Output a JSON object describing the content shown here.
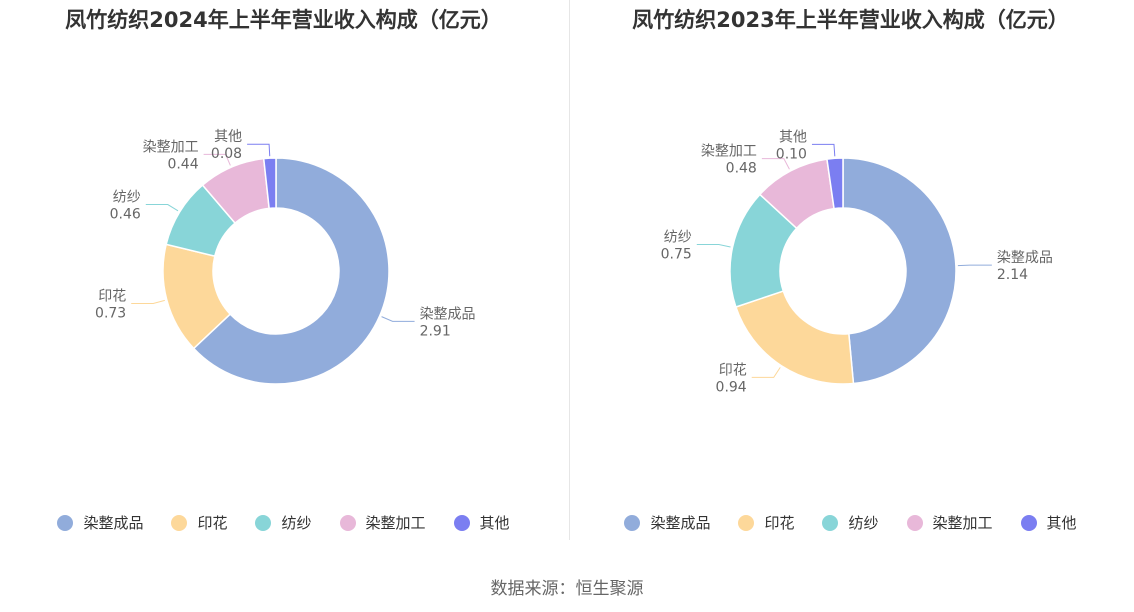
{
  "chart_data": [
    {
      "type": "pie",
      "title": "凤竹纺织2024年上半年营业收入构成（亿元）",
      "categories": [
        "染整成品",
        "印花",
        "纺纱",
        "染整加工",
        "其他"
      ],
      "values": [
        2.91,
        0.73,
        0.46,
        0.44,
        0.08
      ],
      "value_labels": [
        "2.91",
        "0.73",
        "0.46",
        "0.44",
        "0.08"
      ],
      "colors": [
        "#91acdb",
        "#fdd89a",
        "#88d5d8",
        "#e8b8d9",
        "#7b7ef1"
      ],
      "donut": true,
      "legend_position": "bottom"
    },
    {
      "type": "pie",
      "title": "凤竹纺织2023年上半年营业收入构成（亿元）",
      "categories": [
        "染整成品",
        "印花",
        "纺纱",
        "染整加工",
        "其他"
      ],
      "values": [
        2.14,
        0.94,
        0.75,
        0.48,
        0.1
      ],
      "value_labels": [
        "2.14",
        "0.94",
        "0.75",
        "0.48",
        "0.10"
      ],
      "colors": [
        "#91acdb",
        "#fdd89a",
        "#88d5d8",
        "#e8b8d9",
        "#7b7ef1"
      ],
      "donut": true,
      "legend_position": "bottom"
    }
  ],
  "source": "数据来源：恒生聚源"
}
